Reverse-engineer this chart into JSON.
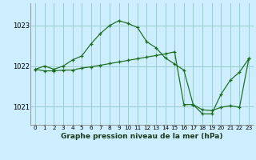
{
  "title": "Graphe pression niveau de la mer (hPa)",
  "background_color": "#cceeff",
  "grid_color": "#99cccc",
  "line_color": "#1a6b1a",
  "xlim": [
    -0.5,
    23.5
  ],
  "ylim": [
    1020.55,
    1023.55
  ],
  "yticks": [
    1021,
    1022,
    1023
  ],
  "xticks": [
    0,
    1,
    2,
    3,
    4,
    5,
    6,
    7,
    8,
    9,
    10,
    11,
    12,
    13,
    14,
    15,
    16,
    17,
    18,
    19,
    20,
    21,
    22,
    23
  ],
  "series1": [
    1021.92,
    1022.0,
    1021.92,
    1022.0,
    1022.15,
    1022.25,
    1022.55,
    1022.8,
    1023.0,
    1023.12,
    1023.05,
    1022.95,
    1022.6,
    1022.45,
    1022.2,
    1022.05,
    1021.9,
    1021.05,
    1020.82,
    1020.82,
    1021.3,
    1021.65,
    1021.85,
    1022.18
  ],
  "series2": [
    1021.92,
    1021.88,
    1021.88,
    1021.9,
    1021.9,
    1021.95,
    1021.98,
    1022.02,
    1022.06,
    1022.1,
    1022.14,
    1022.18,
    1022.22,
    1022.26,
    1022.3,
    1022.35,
    1021.05,
    1021.05,
    1020.92,
    1020.9,
    1020.98,
    1021.02,
    1020.98,
    1022.18
  ],
  "ylabel_fontsize": 6.0,
  "xlabel_fontsize": 6.5,
  "tick_fontsize": 5.2
}
